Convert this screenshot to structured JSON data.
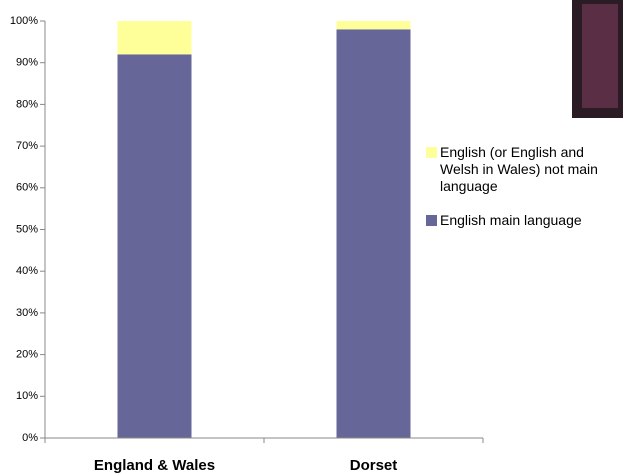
{
  "chart_data": {
    "type": "stacked_bar",
    "categories": [
      "England & Wales",
      "Dorset"
    ],
    "series": [
      {
        "name": "English main language",
        "color": "#666699",
        "values": [
          92,
          98
        ]
      },
      {
        "name": "English (or English and Welsh in Wales) not main language",
        "color": "#ffff99",
        "values": [
          8,
          2
        ]
      }
    ],
    "ylim": [
      0,
      100
    ],
    "yticks": [
      {
        "value": 0,
        "label": "0%"
      },
      {
        "value": 10,
        "label": "10%"
      },
      {
        "value": 20,
        "label": "20%"
      },
      {
        "value": 30,
        "label": "30%"
      },
      {
        "value": 40,
        "label": "40%"
      },
      {
        "value": 50,
        "label": "50%"
      },
      {
        "value": 60,
        "label": "60%"
      },
      {
        "value": 70,
        "label": "70%"
      },
      {
        "value": 80,
        "label": "80%"
      },
      {
        "value": 90,
        "label": "90%"
      },
      {
        "value": 100,
        "label": "100%"
      }
    ],
    "legend": "right"
  }
}
